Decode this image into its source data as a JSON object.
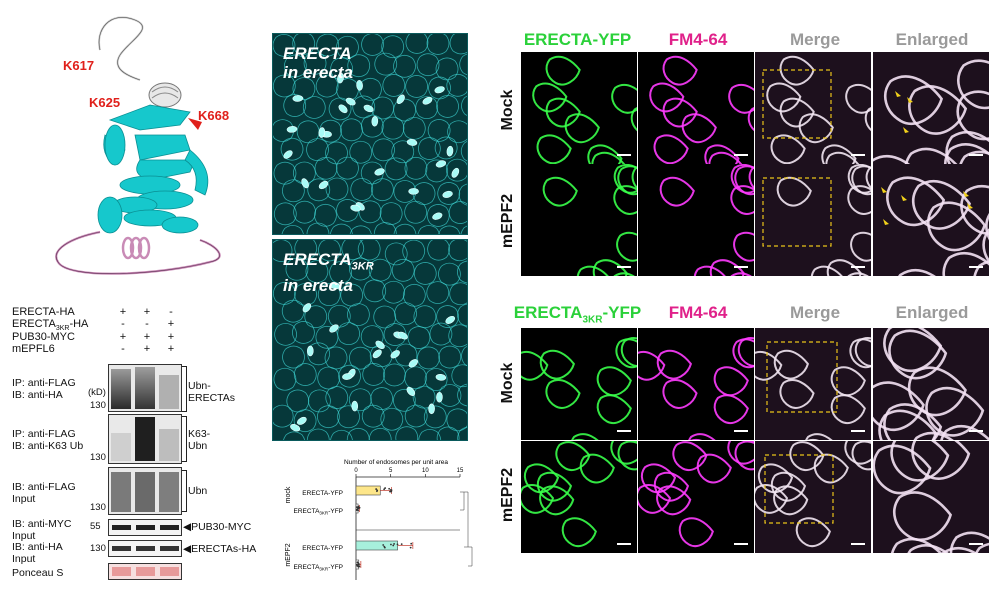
{
  "protein": {
    "labels": [
      "K617",
      "K625",
      "K668"
    ],
    "colors": {
      "helix": "#16c8cc",
      "loop": "#c98bb6",
      "highlight": "#e0201b"
    }
  },
  "blot": {
    "conditions": [
      {
        "label": "ERECTA-HA",
        "signs": [
          "+",
          "+",
          "-"
        ]
      },
      {
        "label": "ERECTA",
        "sub": "3KR",
        "suffix": "-HA",
        "signs": [
          "-",
          "-",
          "+"
        ]
      },
      {
        "label": "PUB30-MYC",
        "signs": [
          "+",
          "+",
          "+"
        ]
      },
      {
        "label": "mEPFL6",
        "signs": [
          "-",
          "+",
          "+"
        ]
      }
    ],
    "kd_unit": "(kD)",
    "panels": [
      {
        "left_lines": [
          "IP: anti-FLAG",
          "IB: anti-HA"
        ],
        "mw": "130",
        "right": [
          "Ubn-",
          "ERECTAs"
        ]
      },
      {
        "left_lines": [
          "IP: anti-FLAG",
          "IB: anti-K63 Ub"
        ],
        "mw": "130",
        "right": [
          "K63-",
          "Ubn"
        ]
      },
      {
        "left_lines": [
          "IB: anti-FLAG",
          "Input"
        ],
        "mw": "130",
        "right": [
          "Ubn"
        ]
      },
      {
        "left_lines": [
          "IB: anti-MYC",
          "Input"
        ],
        "mw": "55",
        "right": [
          "PUB30-MYC"
        ]
      },
      {
        "left_lines": [
          "IB: anti-HA",
          "Input"
        ],
        "mw": "130",
        "right": [
          "ERECTAs-HA"
        ]
      },
      {
        "left_lines": [
          "Ponceau S"
        ],
        "mw": "",
        "right": []
      }
    ]
  },
  "micrographs": [
    {
      "title_main": "ERECTA",
      "title_sub": "",
      "title_line2": "in erecta"
    },
    {
      "title_main": "ERECTA",
      "title_sub": "3KR",
      "title_line2": "in erecta"
    }
  ],
  "chart_data": {
    "type": "bar",
    "orientation": "horizontal",
    "title": "Number of endosomes per unit area",
    "xlim": [
      0,
      15
    ],
    "xticks": [
      "0",
      "5",
      "10",
      "15"
    ],
    "groups": [
      "mock",
      "mEPF2"
    ],
    "categories": [
      "ERECTA-YFP",
      "ERECTA3KR-YFP",
      "ERECTA-YFP",
      "ERECTA3KR-YFP"
    ],
    "category_labels": [
      {
        "main": "ERECTA-YFP",
        "sub": ""
      },
      {
        "main": "ERECTA",
        "sub": "3KR",
        "suffix": "-YFP"
      },
      {
        "main": "ERECTA-YFP",
        "sub": ""
      },
      {
        "main": "ERECTA",
        "sub": "3KR",
        "suffix": "-YFP"
      }
    ],
    "values": [
      3.5,
      0.3,
      6.0,
      0.4
    ],
    "errors": [
      1.6,
      0.2,
      2.2,
      0.3
    ],
    "bar_colors": [
      "#fde68a",
      "#ffffff",
      "#a7f0dc",
      "#ffffff"
    ]
  },
  "confocal": {
    "top_headers": [
      {
        "text": "ERECTA-YFP",
        "sub": "",
        "color": "#2bd13a"
      },
      {
        "text": "FM4-64",
        "sub": "",
        "color": "#e0218a"
      },
      {
        "text": "Merge",
        "sub": "",
        "color": "#9a9a9a"
      },
      {
        "text": "Enlarged",
        "sub": "",
        "color": "#9a9a9a"
      }
    ],
    "bottom_headers": [
      {
        "text": "ERECTA",
        "sub": "3KR",
        "suffix": "-YFP",
        "color": "#2bd13a"
      },
      {
        "text": "FM4-64",
        "sub": "",
        "color": "#e0218a"
      },
      {
        "text": "Merge",
        "sub": "",
        "color": "#9a9a9a"
      },
      {
        "text": "Enlarged",
        "sub": "",
        "color": "#9a9a9a"
      }
    ],
    "row_labels": [
      "Mock",
      "mEPF2",
      "Mock",
      "mEPF2"
    ],
    "colors": {
      "yfp": "#39ff4a",
      "fm": "#ff3cff",
      "merge": "#f2e6f2",
      "box": "#e8c21a",
      "arrow": "#f2d21b"
    }
  }
}
